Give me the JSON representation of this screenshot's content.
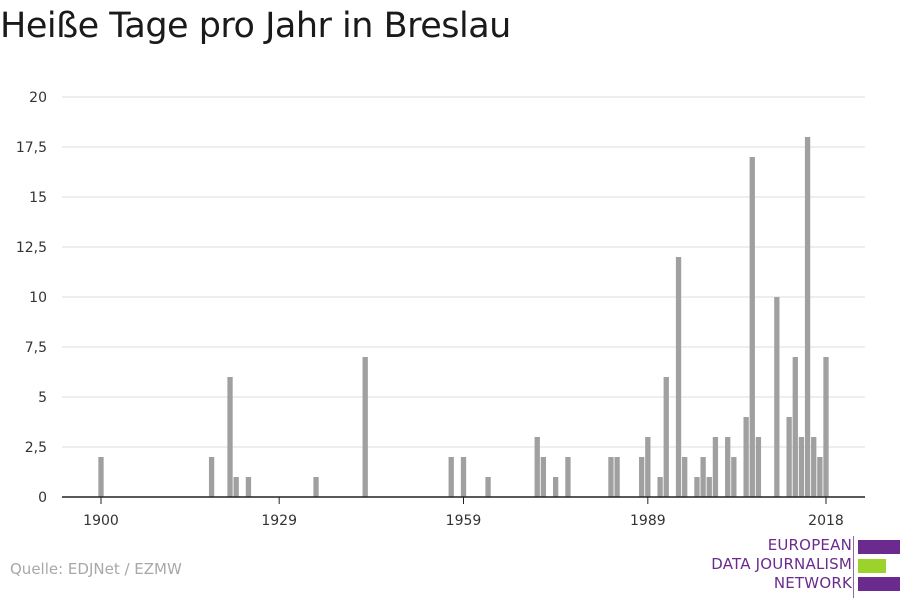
{
  "title": "Heiße Tage pro Jahr in Breslau",
  "source": "Quelle: EDJNet / EZMW",
  "logo": {
    "lines": [
      "EUROPEAN",
      "DATA JOURNALISM",
      "NETWORK"
    ],
    "colors": {
      "primary": "#6b2b8e",
      "accent": "#9cd22c"
    }
  },
  "chart_data": {
    "type": "bar",
    "title": "Heiße Tage pro Jahr in Breslau",
    "xlabel": "",
    "ylabel": "",
    "x_range": [
      1900,
      2018
    ],
    "ylim": [
      0,
      20
    ],
    "yticks": [
      "0",
      "2,5",
      "5",
      "7,5",
      "10",
      "12,5",
      "15",
      "17,5",
      "20"
    ],
    "xticks": [
      "1900",
      "1929",
      "1959",
      "1989",
      "2018"
    ],
    "grid": true,
    "bar_color": "#a0a0a0",
    "bars": [
      {
        "year": 1900,
        "value": 2
      },
      {
        "year": 1918,
        "value": 2
      },
      {
        "year": 1921,
        "value": 6
      },
      {
        "year": 1922,
        "value": 1
      },
      {
        "year": 1924,
        "value": 1
      },
      {
        "year": 1935,
        "value": 1
      },
      {
        "year": 1943,
        "value": 7
      },
      {
        "year": 1957,
        "value": 2
      },
      {
        "year": 1959,
        "value": 2
      },
      {
        "year": 1963,
        "value": 1
      },
      {
        "year": 1971,
        "value": 3
      },
      {
        "year": 1972,
        "value": 2
      },
      {
        "year": 1974,
        "value": 1
      },
      {
        "year": 1976,
        "value": 2
      },
      {
        "year": 1983,
        "value": 2
      },
      {
        "year": 1984,
        "value": 2
      },
      {
        "year": 1988,
        "value": 2
      },
      {
        "year": 1989,
        "value": 3
      },
      {
        "year": 1991,
        "value": 1
      },
      {
        "year": 1992,
        "value": 6
      },
      {
        "year": 1994,
        "value": 12
      },
      {
        "year": 1995,
        "value": 2
      },
      {
        "year": 1997,
        "value": 1
      },
      {
        "year": 1998,
        "value": 2
      },
      {
        "year": 1999,
        "value": 1
      },
      {
        "year": 2000,
        "value": 3
      },
      {
        "year": 2002,
        "value": 3
      },
      {
        "year": 2003,
        "value": 2
      },
      {
        "year": 2005,
        "value": 4
      },
      {
        "year": 2006,
        "value": 17
      },
      {
        "year": 2007,
        "value": 3
      },
      {
        "year": 2010,
        "value": 10
      },
      {
        "year": 2012,
        "value": 4
      },
      {
        "year": 2013,
        "value": 7
      },
      {
        "year": 2014,
        "value": 3
      },
      {
        "year": 2015,
        "value": 18
      },
      {
        "year": 2016,
        "value": 3
      },
      {
        "year": 2017,
        "value": 2
      },
      {
        "year": 2018,
        "value": 7
      }
    ]
  }
}
